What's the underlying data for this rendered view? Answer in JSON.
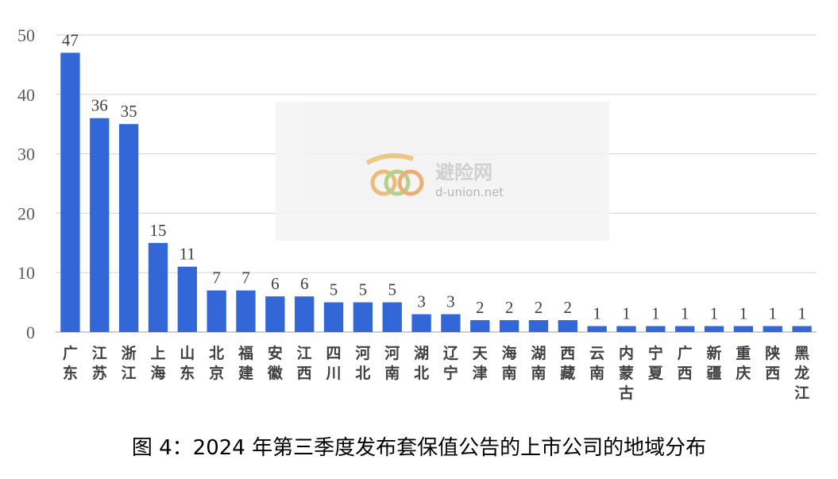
{
  "chart_data": {
    "type": "bar",
    "title": "图 4：2024 年第三季度发布套保值公告的上市公司的地域分布",
    "categories": [
      "广东",
      "江苏",
      "浙江",
      "上海",
      "山东",
      "北京",
      "福建",
      "安徽",
      "江西",
      "四川",
      "河北",
      "河南",
      "湖北",
      "辽宁",
      "天津",
      "海南",
      "湖南",
      "西藏",
      "云南",
      "内蒙古",
      "宁夏",
      "广西",
      "新疆",
      "重庆",
      "陕西",
      "黑龙江"
    ],
    "values": [
      47,
      36,
      35,
      15,
      11,
      7,
      7,
      6,
      6,
      5,
      5,
      5,
      3,
      3,
      2,
      2,
      2,
      2,
      1,
      1,
      1,
      1,
      1,
      1,
      1,
      1
    ],
    "ylim": [
      0,
      50
    ],
    "yticks": [
      0,
      10,
      20,
      30,
      40,
      50
    ],
    "grid": true,
    "data_labels": true,
    "bar_color": "#3366d6"
  },
  "watermark": {
    "name": "避险网",
    "url": "d-union.net"
  }
}
